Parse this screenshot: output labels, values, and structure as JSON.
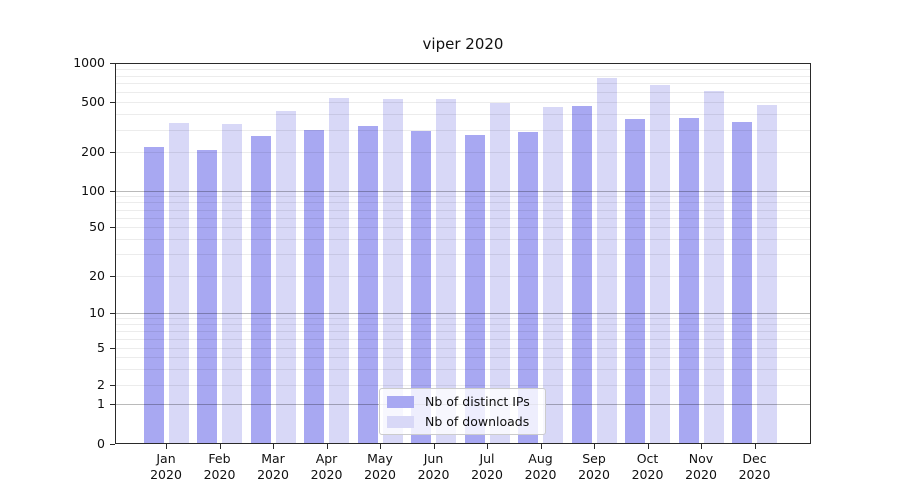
{
  "chart_data": {
    "type": "bar",
    "title": "viper 2020",
    "x_months": [
      "Jan",
      "Feb",
      "Mar",
      "Apr",
      "May",
      "Jun",
      "Jul",
      "Aug",
      "Sep",
      "Oct",
      "Nov",
      "Dec"
    ],
    "x_year": "2020",
    "series": [
      {
        "name": "Nb of distinct IPs",
        "color": "#a8a8f2",
        "values": [
          220,
          208,
          268,
          300,
          324,
          294,
          272,
          287,
          462,
          363,
          370,
          346
        ]
      },
      {
        "name": "Nb of downloads",
        "color": "#d8d8f7",
        "values": [
          340,
          333,
          421,
          537,
          528,
          525,
          485,
          451,
          766,
          675,
          606,
          473
        ]
      }
    ],
    "y_axis": {
      "scale": "symlog",
      "tick_labels": [
        "1000",
        "500",
        "200",
        "100",
        "50",
        "20",
        "10",
        "5",
        "2",
        "1",
        "0"
      ],
      "tick_values": [
        1000,
        500,
        200,
        100,
        50,
        20,
        10,
        5,
        2,
        1,
        0
      ]
    },
    "ylim": [
      0,
      1000
    ],
    "grid": true,
    "legend": {
      "position": "lower-center"
    }
  }
}
